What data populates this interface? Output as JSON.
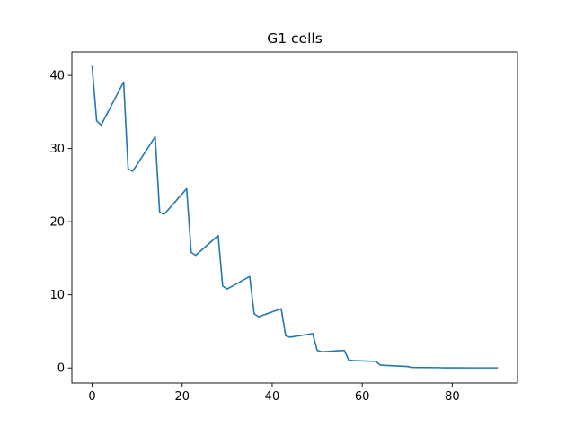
{
  "chart_data": {
    "type": "line",
    "title": "G1 cells",
    "xlabel": "",
    "ylabel": "",
    "xlim": [
      -4.5,
      94.5
    ],
    "ylim": [
      -2.06,
      43.2
    ],
    "xticks": [
      0,
      20,
      40,
      60,
      80
    ],
    "yticks": [
      0,
      10,
      20,
      30,
      40
    ],
    "xtick_labels": [
      "0",
      "20",
      "40",
      "60",
      "80"
    ],
    "ytick_labels": [
      "0",
      "10",
      "20",
      "30",
      "40"
    ],
    "grid": false,
    "legend": "none",
    "series": [
      {
        "color": "#1f77b4",
        "x": [
          0,
          1,
          2,
          7,
          8,
          9,
          14,
          15,
          16,
          21,
          22,
          23,
          28,
          29,
          30,
          35,
          36,
          37,
          42,
          43,
          44,
          49,
          50,
          51,
          56,
          57,
          58,
          63,
          64,
          65,
          70,
          71,
          72,
          77,
          78,
          79,
          84,
          85,
          86,
          90
        ],
        "y": [
          41.2,
          33.8,
          33.2,
          39.1,
          27.2,
          26.9,
          31.6,
          21.3,
          21.0,
          24.5,
          15.8,
          15.4,
          18.1,
          11.2,
          10.8,
          12.5,
          7.4,
          7.0,
          8.1,
          4.4,
          4.2,
          4.7,
          2.4,
          2.2,
          2.4,
          1.1,
          1.0,
          0.9,
          0.4,
          0.35,
          0.2,
          0.08,
          0.06,
          0.04,
          0.02,
          0.02,
          0.01,
          0.01,
          0.01,
          0.01
        ]
      }
    ]
  }
}
